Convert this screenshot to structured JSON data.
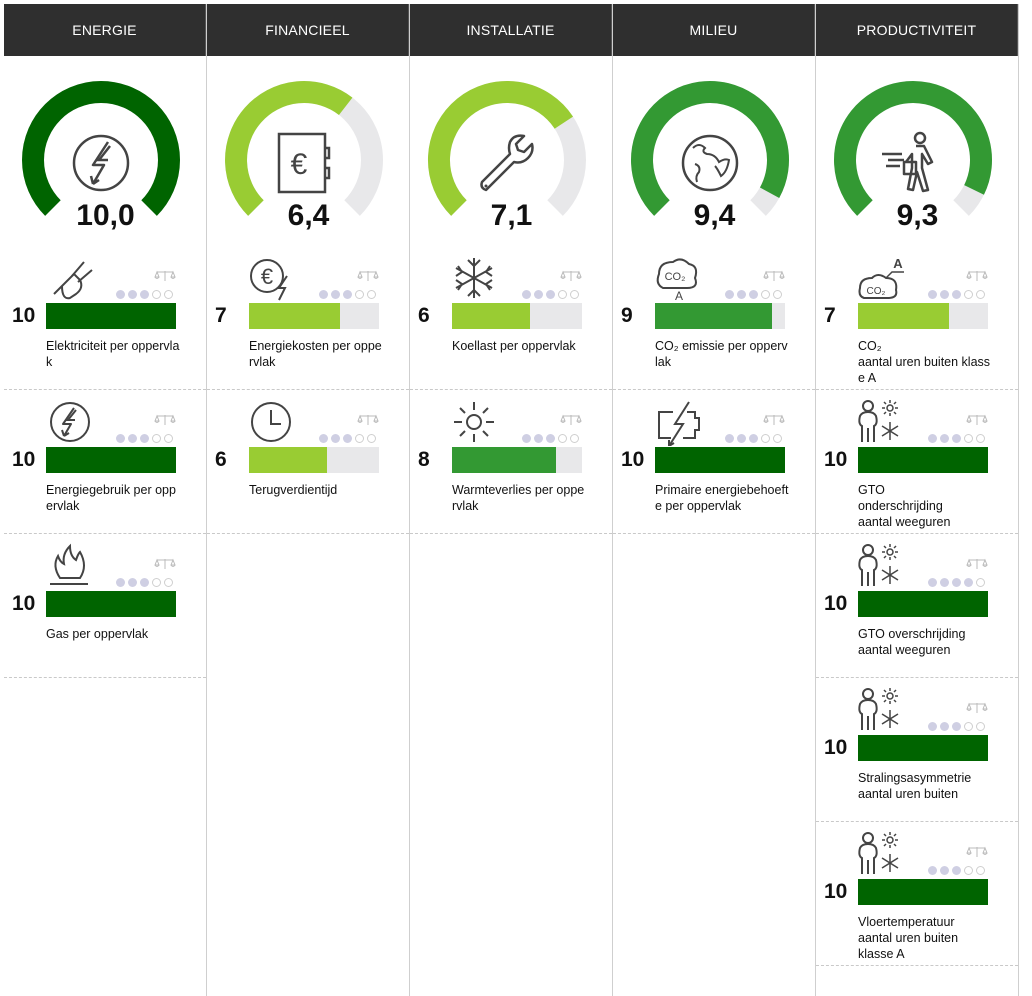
{
  "colors": {
    "dark_green": "#006400",
    "mid_green": "#339933",
    "light_green": "#99cc33",
    "empty": "#e8e8ea",
    "header_bg": "#2f2f2f"
  },
  "columns": [
    {
      "title": "ENERGIE",
      "gauge": {
        "value": "10,0",
        "score": 10.0,
        "icon": "lightning-circle-icon",
        "color": "#006400"
      },
      "items": [
        {
          "icon": "plug-icon",
          "score": "10",
          "value": 10,
          "color": "#006400",
          "label": "Elektriciteit per oppervlak",
          "dots_filled": 3
        },
        {
          "icon": "lightning-circle-icon",
          "score": "10",
          "value": 10,
          "color": "#006400",
          "label": "Energiegebruik per oppervlak",
          "dots_filled": 3
        },
        {
          "icon": "flame-icon",
          "score": "10",
          "value": 10,
          "color": "#006400",
          "label": "Gas per oppervlak",
          "dots_filled": 3
        }
      ]
    },
    {
      "title": "FINANCIEEL",
      "gauge": {
        "value": "6,4",
        "score": 6.4,
        "icon": "euro-safe-icon",
        "color": "#99cc33"
      },
      "items": [
        {
          "icon": "euro-lightning-icon",
          "score": "7",
          "value": 7,
          "color": "#99cc33",
          "label": "Energiekosten per oppervlak",
          "dots_filled": 3
        },
        {
          "icon": "clock-icon",
          "score": "6",
          "value": 6,
          "color": "#99cc33",
          "label": "Terugverdientijd",
          "dots_filled": 3
        }
      ]
    },
    {
      "title": "INSTALLATIE",
      "gauge": {
        "value": "7,1",
        "score": 7.1,
        "icon": "wrench-icon",
        "color": "#99cc33"
      },
      "items": [
        {
          "icon": "snowflake-icon",
          "score": "6",
          "value": 6,
          "color": "#99cc33",
          "label": "Koellast per oppervlak",
          "dots_filled": 3
        },
        {
          "icon": "sun-icon",
          "score": "8",
          "value": 8,
          "color": "#339933",
          "label": "Warmteverlies per oppervlak",
          "dots_filled": 3
        }
      ]
    },
    {
      "title": "MILIEU",
      "gauge": {
        "value": "9,4",
        "score": 9.4,
        "icon": "globe-icon",
        "color": "#339933"
      },
      "items": [
        {
          "icon": "co2-cloud-icon",
          "score": "9",
          "value": 9,
          "color": "#339933",
          "label": "CO₂ emissie per oppervlak",
          "dots_filled": 3
        },
        {
          "icon": "battery-lightning-icon",
          "score": "10",
          "value": 10,
          "color": "#006400",
          "label": "Primaire energiebehoefte per oppervlak",
          "dots_filled": 3
        }
      ]
    },
    {
      "title": "PRODUCTIVITEIT",
      "gauge": {
        "value": "9,3",
        "score": 9.3,
        "icon": "walking-person-icon",
        "color": "#339933"
      },
      "items": [
        {
          "icon": "co2-cloud-a-icon",
          "score": "7",
          "value": 7,
          "color": "#99cc33",
          "label": "CO₂\naantal uren buiten klasse A",
          "dots_filled": 3
        },
        {
          "icon": "person-climate-icon",
          "score": "10",
          "value": 10,
          "color": "#006400",
          "label": "GTO\nonderschrijding\naantal weeguren",
          "dots_filled": 3
        },
        {
          "icon": "person-climate-icon",
          "score": "10",
          "value": 10,
          "color": "#006400",
          "label": "GTO overschrijding\naantal weeguren",
          "dots_filled": 4
        },
        {
          "icon": "person-climate-icon",
          "score": "10",
          "value": 10,
          "color": "#006400",
          "label": "Stralingsasymmetrie\naantal uren buiten",
          "dots_filled": 3
        },
        {
          "icon": "person-climate-icon",
          "score": "10",
          "value": 10,
          "color": "#006400",
          "label": "Vloertemperatuur\naantal uren buiten\nklasse A",
          "dots_filled": 3
        }
      ]
    }
  ]
}
